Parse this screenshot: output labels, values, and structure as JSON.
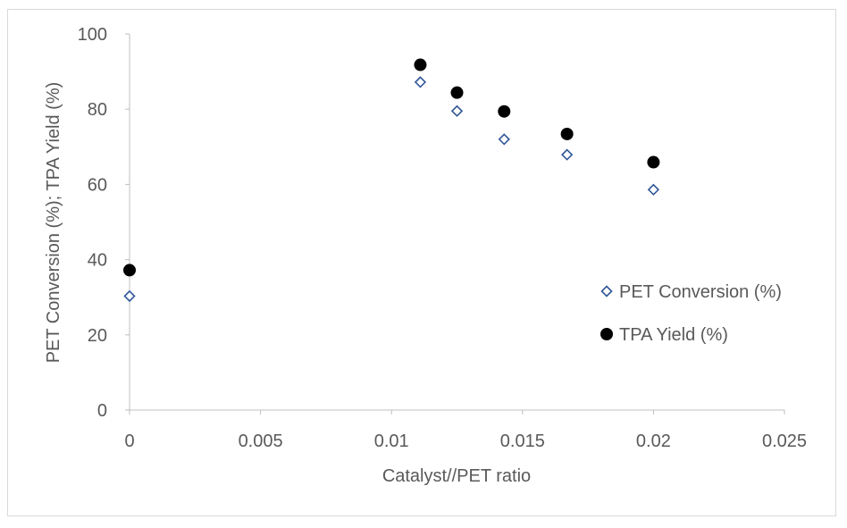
{
  "chart_data": {
    "type": "scatter",
    "xlabel": "Catalyst//PET ratio",
    "ylabel": "PET Conversion (%); TPA Yield (%)",
    "xlim": [
      0,
      0.025
    ],
    "ylim": [
      0,
      100
    ],
    "xticks": [
      0,
      0.005,
      0.01,
      0.015,
      0.02,
      0.025
    ],
    "xtick_labels": [
      "0",
      "0.005",
      "0.01",
      "0.015",
      "0.02",
      "0.025"
    ],
    "yticks": [
      0,
      20,
      40,
      60,
      80,
      100
    ],
    "ytick_labels": [
      "0",
      "20",
      "40",
      "60",
      "80",
      "100"
    ],
    "grid": false,
    "legend_position": "right",
    "series": [
      {
        "name": "PET Conversion (%)",
        "marker": "open-diamond",
        "color": "#2f5597",
        "points": [
          {
            "x": 0,
            "y": 30.3
          },
          {
            "x": 0.0111,
            "y": 87.2
          },
          {
            "x": 0.0125,
            "y": 79.5
          },
          {
            "x": 0.0143,
            "y": 72.0
          },
          {
            "x": 0.0167,
            "y": 67.9
          },
          {
            "x": 0.02,
            "y": 58.6
          }
        ]
      },
      {
        "name": "TPA Yield (%)",
        "marker": "filled-circle",
        "color": "#000000",
        "points": [
          {
            "x": 0,
            "y": 37.2
          },
          {
            "x": 0.0111,
            "y": 91.8
          },
          {
            "x": 0.0125,
            "y": 84.4
          },
          {
            "x": 0.0143,
            "y": 79.4
          },
          {
            "x": 0.0167,
            "y": 73.4
          },
          {
            "x": 0.02,
            "y": 65.9
          }
        ]
      }
    ]
  }
}
